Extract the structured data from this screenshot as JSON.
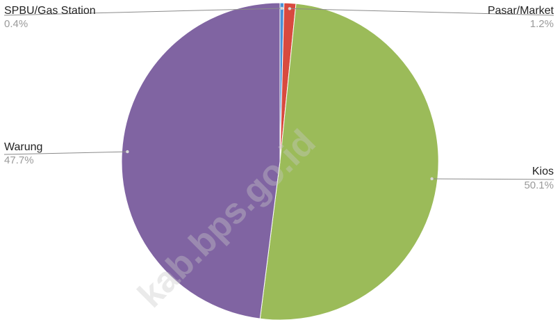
{
  "watermark": "kab.bps.go.id",
  "chart_data": {
    "type": "pie",
    "categories": [
      "SPBU/Gas Station",
      "Pasar/Market",
      "Kios",
      "Warung"
    ],
    "values": [
      0.4,
      1.2,
      50.1,
      47.7
    ],
    "labels": [
      "0.4%",
      "1.2%",
      "50.1%",
      "47.7%"
    ],
    "colors": [
      "#4a90d6",
      "#d84a3f",
      "#9bbb59",
      "#8064a2"
    ],
    "label_placement": {
      "SPBU/Gas Station": "top-left",
      "Pasar/Market": "top-right",
      "Kios": "right",
      "Warung": "left"
    }
  }
}
